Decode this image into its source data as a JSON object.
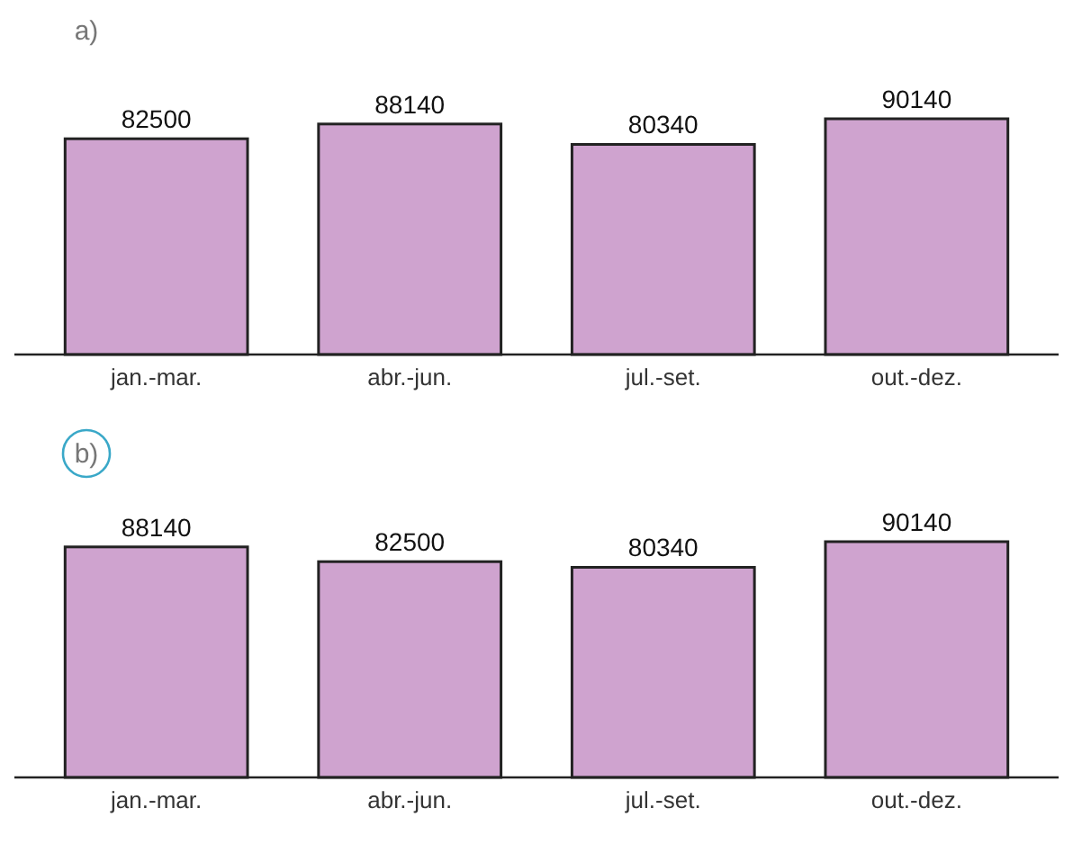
{
  "chart_data": [
    {
      "type": "bar",
      "title": "a)",
      "categories": [
        "jan.-mar.",
        "abr.-jun.",
        "jul.-set.",
        "out.-dez."
      ],
      "values": [
        82500,
        88140,
        80340,
        90140
      ],
      "color": "#cfa3cf",
      "data_labels": true
    },
    {
      "type": "bar",
      "title": "b)",
      "categories": [
        "jan.-mar.",
        "abr.-jun.",
        "jul.-set.",
        "out.-dez."
      ],
      "values": [
        88140,
        82500,
        80340,
        90140
      ],
      "color": "#cfa3cf",
      "data_labels": true
    }
  ]
}
